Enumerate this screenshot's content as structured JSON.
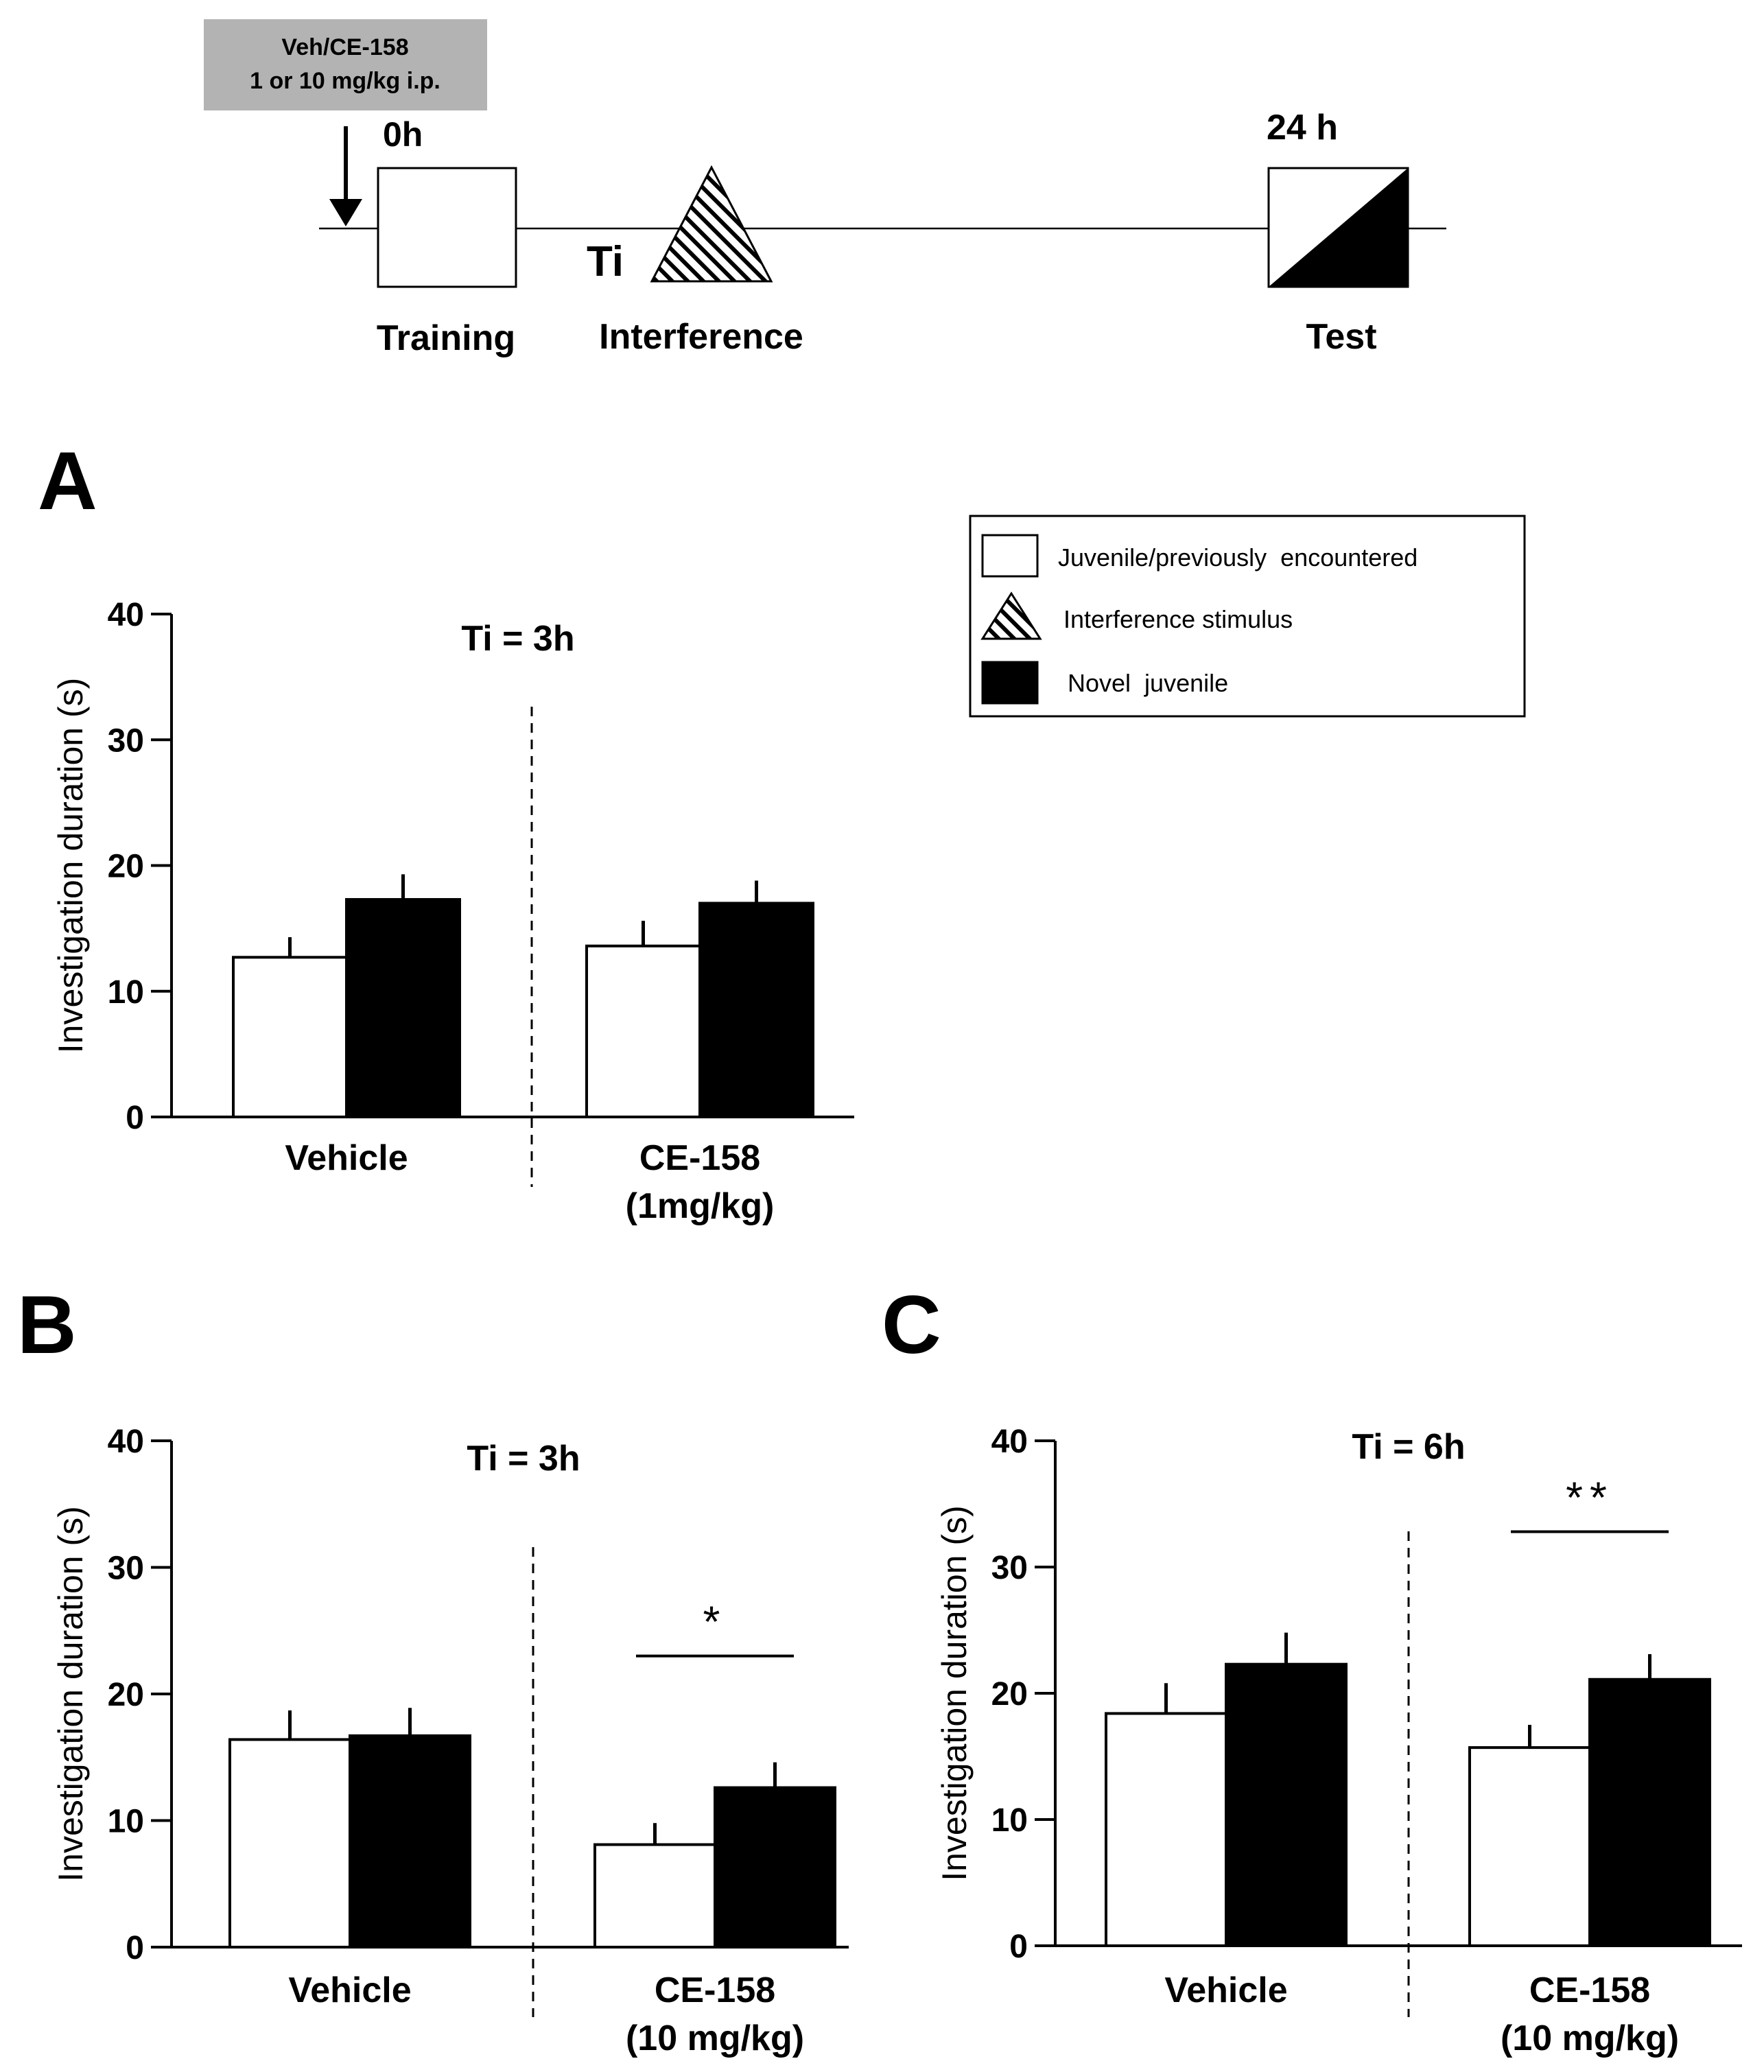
{
  "protocol": {
    "treatment_box_line1": "Veh/CE-158",
    "treatment_box_line2": "1 or 10 mg/kg i.p.",
    "time_start": "0h",
    "time_test": "24 h",
    "ti_label": "Ti",
    "step_training": "Training",
    "step_interference": "Interference",
    "step_test": "Test"
  },
  "legend": {
    "items": [
      {
        "key": "juvenile",
        "label": "Juvenile/previously  encountered"
      },
      {
        "key": "interference",
        "label": "Interference stimulus"
      },
      {
        "key": "novel",
        "label": "Novel  juvenile"
      }
    ]
  },
  "colors": {
    "juvenile_fill": "#ffffff",
    "novel_fill": "#000000",
    "stroke": "#000000",
    "treatment_box": "#b3b3b3"
  },
  "chart_data": [
    {
      "panel": "A",
      "type": "bar",
      "title": "Ti = 3h",
      "ylabel": "Investigation duration (s)",
      "xlabel": "",
      "ylim": [
        0,
        40
      ],
      "yticks": [
        0,
        10,
        20,
        30,
        40
      ],
      "groups": [
        {
          "label_lines": [
            "Vehicle"
          ]
        },
        {
          "label_lines": [
            "CE-158",
            "(1mg/kg)"
          ]
        }
      ],
      "series": [
        {
          "name": "Juvenile/previously encountered",
          "values": [
            12.7,
            13.6
          ],
          "errors": [
            1.6,
            2.0
          ]
        },
        {
          "name": "Novel juvenile",
          "values": [
            17.3,
            17.0
          ],
          "errors": [
            2.0,
            1.8
          ]
        }
      ],
      "significance": []
    },
    {
      "panel": "B",
      "type": "bar",
      "title": "Ti = 3h",
      "ylabel": "Investigation duration (s)",
      "xlabel": "",
      "ylim": [
        0,
        40
      ],
      "yticks": [
        0,
        10,
        20,
        30,
        40
      ],
      "groups": [
        {
          "label_lines": [
            "Vehicle"
          ]
        },
        {
          "label_lines": [
            "CE-158",
            "(10 mg/kg)"
          ]
        }
      ],
      "series": [
        {
          "name": "Juvenile/previously encountered",
          "values": [
            16.4,
            8.1
          ],
          "errors": [
            2.3,
            1.7
          ]
        },
        {
          "name": "Novel juvenile",
          "values": [
            16.7,
            12.6
          ],
          "errors": [
            2.2,
            2.0
          ]
        }
      ],
      "significance": [
        {
          "group": 1,
          "label": "*",
          "level": 23
        }
      ]
    },
    {
      "panel": "C",
      "type": "bar",
      "title": "Ti = 6h",
      "ylabel": "Investigation duration (s)",
      "xlabel": "",
      "ylim": [
        0,
        40
      ],
      "yticks": [
        0,
        10,
        20,
        30,
        40
      ],
      "groups": [
        {
          "label_lines": [
            "Vehicle"
          ]
        },
        {
          "label_lines": [
            "CE-158",
            "(10 mg/kg)"
          ]
        }
      ],
      "series": [
        {
          "name": "Juvenile/previously encountered",
          "values": [
            18.4,
            15.7
          ],
          "errors": [
            2.4,
            1.8
          ]
        },
        {
          "name": "Novel juvenile",
          "values": [
            22.3,
            21.1
          ],
          "errors": [
            2.5,
            2.0
          ]
        }
      ],
      "significance": [
        {
          "group": 1,
          "label": "**",
          "level": 32.8
        }
      ]
    }
  ]
}
